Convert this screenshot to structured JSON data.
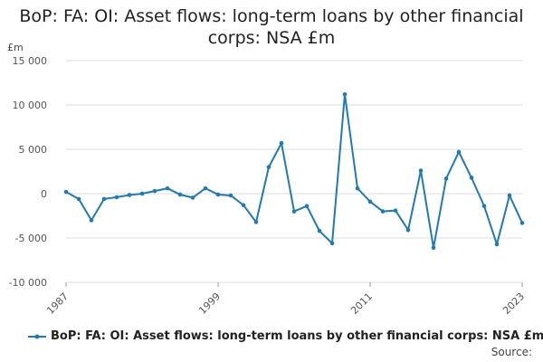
{
  "title_lines": [
    "BoP: FA: OI: Asset flows: long-term loans by other financial",
    "corps: NSA £m"
  ],
  "source_label": "Source:",
  "colors": {
    "series": "#1f7ab5",
    "grid": "#dddddd",
    "axis": "#999999"
  },
  "chart_data": {
    "type": "line",
    "title": "BoP: FA: OI: Asset flows: long-term loans by other financial corps: NSA £m",
    "ylabel": "£m",
    "ylim": [
      -10000,
      15000
    ],
    "yticks": [
      15000,
      10000,
      5000,
      0,
      -5000,
      -10000
    ],
    "ytick_labels": [
      "15 000",
      "10 000",
      "5 000",
      "0",
      "-5 000",
      "-10 000"
    ],
    "xlim": [
      1987,
      2023
    ],
    "xticks": [
      1987,
      1999,
      2011,
      2023
    ],
    "xtick_labels": [
      "1987",
      "1999",
      "2011",
      "2023"
    ],
    "grid": true,
    "legend": "bottom",
    "series": [
      {
        "name": "BoP: FA: OI: Asset flows: long-term loans by other financial corps: NSA £m",
        "x": [
          1987,
          1988,
          1989,
          1990,
          1991,
          1992,
          1993,
          1994,
          1995,
          1996,
          1997,
          1998,
          1999,
          2000,
          2001,
          2002,
          2003,
          2004,
          2005,
          2006,
          2007,
          2008,
          2009,
          2010,
          2011,
          2012,
          2013,
          2014,
          2015,
          2016,
          2017,
          2018,
          2019,
          2020,
          2021,
          2022,
          2023
        ],
        "values": [
          200,
          -600,
          -3000,
          -600,
          -400,
          -150,
          0,
          300,
          600,
          -100,
          -450,
          600,
          -100,
          -200,
          -1300,
          -3200,
          3000,
          5700,
          -2000,
          -1400,
          -4200,
          -5600,
          11200,
          600,
          -900,
          -2000,
          -1900,
          -4100,
          2600,
          -6100,
          1700,
          4700,
          1800,
          -1400,
          -5700,
          -200,
          -3300
        ]
      }
    ]
  }
}
